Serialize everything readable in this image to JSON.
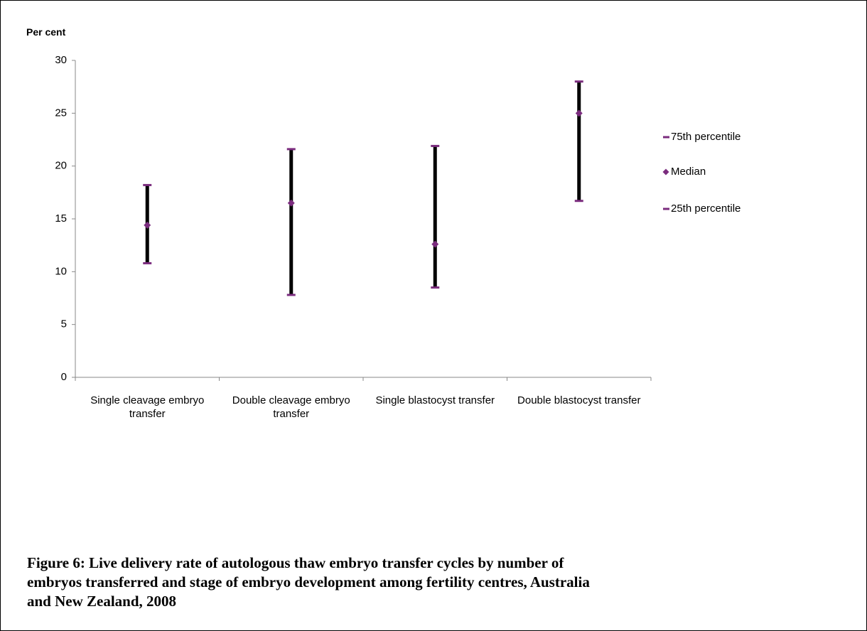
{
  "chart_data": {
    "type": "hilo",
    "ylabel": "Per cent",
    "categories": [
      "Single cleavage embryo transfer",
      "Double cleavage embryo transfer",
      "Single blastocyst transfer",
      "Double blastocyst transfer"
    ],
    "series": [
      {
        "name": "75th percentile",
        "color": "#7b2c7e",
        "values": [
          18.2,
          21.6,
          21.9,
          28.0
        ]
      },
      {
        "name": "Median",
        "color": "#7b2c7e",
        "values": [
          14.4,
          16.5,
          12.6,
          25.0
        ]
      },
      {
        "name": "25th percentile",
        "color": "#7b2c7e",
        "values": [
          10.8,
          7.8,
          8.5,
          16.7
        ]
      }
    ],
    "ylim": [
      0,
      30
    ],
    "yticks": [
      0,
      5,
      10,
      15,
      20,
      25,
      30
    ],
    "grid": false,
    "legend": "right",
    "caption": "Figure 6: Live delivery rate of autologous thaw embryo transfer cycles by number of embryos transferred and stage of embryo development among fertility centres, Australia and New Zealand, 2008"
  }
}
